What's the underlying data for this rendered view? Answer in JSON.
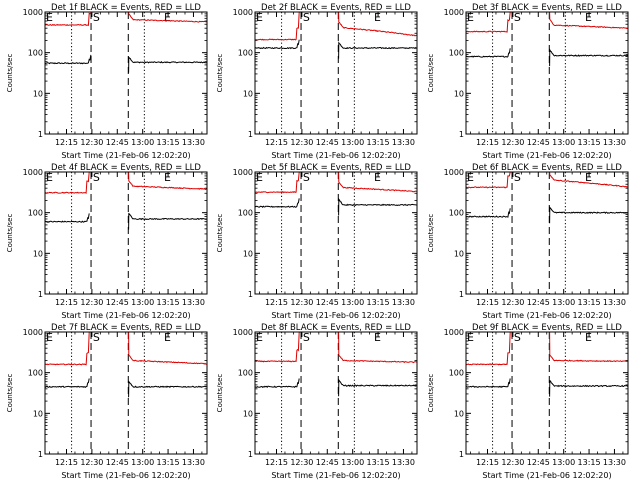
{
  "chart_data": {
    "type": "line",
    "layout": "3x3 grid of small multiples",
    "ylabel": "Counts/sec",
    "xlabel": "Start Time (21-Feb-06 12:02:20)",
    "yscale": "log",
    "ylim": [
      1,
      1000
    ],
    "y_ticks": [
      "1",
      "10",
      "100",
      "1000"
    ],
    "x_ticks": [
      "12:15",
      "12:30",
      "12:45",
      "13:00",
      "13:15",
      "13:30"
    ],
    "x_unit": "minutes after 12:00",
    "xlim": [
      2.3,
      98
    ],
    "dotted_lines_x": [
      18,
      61
    ],
    "dashed_lines_x": [
      29.5,
      51.5
    ],
    "markers": [
      {
        "text": "E",
        "x": 2.3
      },
      {
        "text": "S",
        "x": 30
      },
      {
        "text": "E",
        "x": 72
      }
    ],
    "colors": {
      "events": "#000000",
      "lld": "#dd0000"
    },
    "panels": [
      {
        "title": "Det 1f BLACK = Events, RED = LLD",
        "series": [
          {
            "name": "Events",
            "color": "black",
            "pre": 55,
            "post": 58,
            "last_x": 29
          },
          {
            "name": "LLD",
            "color": "red",
            "pre": 480,
            "post": 650,
            "end": 570,
            "last_x": 29.5
          }
        ]
      },
      {
        "title": "Det 2f BLACK = Events, RED = LLD",
        "series": [
          {
            "name": "Events",
            "color": "black",
            "pre": 130,
            "post": 130,
            "last_x": 28
          },
          {
            "name": "LLD",
            "color": "red",
            "pre": 210,
            "post": 420,
            "end": 260,
            "last_x": 28
          }
        ]
      },
      {
        "title": "Det 3f BLACK = Events, RED = LLD",
        "series": [
          {
            "name": "Events",
            "color": "black",
            "pre": 80,
            "post": 85,
            "last_x": 28
          },
          {
            "name": "LLD",
            "color": "red",
            "pre": 330,
            "post": 480,
            "end": 400,
            "last_x": 28
          }
        ]
      },
      {
        "title": "Det 4f BLACK = Events, RED = LLD",
        "series": [
          {
            "name": "Events",
            "color": "black",
            "pre": 60,
            "post": 70,
            "last_x": 28
          },
          {
            "name": "LLD",
            "color": "red",
            "pre": 310,
            "post": 450,
            "end": 380,
            "last_x": 28
          }
        ]
      },
      {
        "title": "Det 5f BLACK = Events, RED = LLD",
        "series": [
          {
            "name": "Events",
            "color": "black",
            "pre": 140,
            "post": 155,
            "last_x": 28
          },
          {
            "name": "LLD",
            "color": "red",
            "pre": 320,
            "post": 420,
            "end": 330,
            "last_x": 28
          }
        ]
      },
      {
        "title": "Det 6f BLACK = Events, RED = LLD",
        "series": [
          {
            "name": "Events",
            "color": "black",
            "pre": 80,
            "post": 100,
            "last_x": 28
          },
          {
            "name": "LLD",
            "color": "red",
            "pre": 420,
            "post": 640,
            "end": 430,
            "last_x": 28
          }
        ]
      },
      {
        "title": "Det 7f BLACK = Events, RED = LLD",
        "series": [
          {
            "name": "Events",
            "color": "black",
            "pre": 45,
            "post": 45,
            "last_x": 28
          },
          {
            "name": "LLD",
            "color": "red",
            "pre": 160,
            "post": 200,
            "end": 165,
            "last_x": 28
          }
        ]
      },
      {
        "title": "Det 8f BLACK = Events, RED = LLD",
        "series": [
          {
            "name": "Events",
            "color": "black",
            "pre": 45,
            "post": 48,
            "last_x": 28
          },
          {
            "name": "LLD",
            "color": "red",
            "pre": 190,
            "post": 200,
            "end": 180,
            "last_x": 28
          }
        ]
      },
      {
        "title": "Det 9f BLACK = Events, RED = LLD",
        "series": [
          {
            "name": "Events",
            "color": "black",
            "pre": 45,
            "post": 47,
            "last_x": 28
          },
          {
            "name": "LLD",
            "color": "red",
            "pre": 160,
            "post": 200,
            "end": 190,
            "last_x": 28
          }
        ]
      }
    ]
  }
}
